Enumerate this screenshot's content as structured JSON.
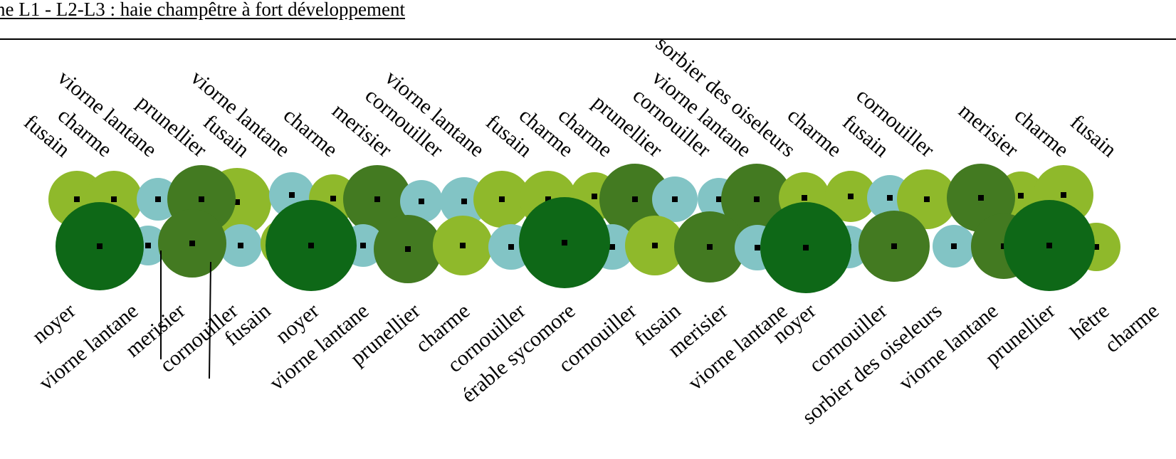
{
  "title": "ne L1 - L2-L3 : haie champêtre à fort développement",
  "colors": {
    "light_green": "#8fb92b",
    "cyan": "#82c4c5",
    "mid_green": "#437a21",
    "dark_green": "#0e6817",
    "dot": "#000000",
    "line": "#000000"
  },
  "top_labels": [
    "fusain",
    "charme",
    "viorne lantane",
    "prunellier",
    "fusain",
    "viorne lantane",
    "charme",
    "merisier",
    "cornouiller",
    "viorne lantane",
    "fusain",
    "charme",
    "charme",
    "prunellier",
    "cornouiller",
    "viorne lantane",
    "sorbier des oiseleurs",
    "charme",
    "fusain",
    "cornouiller",
    "merisier",
    "charme",
    "fusain"
  ],
  "bottom_labels": [
    "noyer",
    "viorne lantane",
    "merisier",
    "cornouiller",
    "fusain",
    "noyer",
    "viorne lantane",
    "prunellier",
    "charme",
    "cornouiller",
    "érable sycomore",
    "cornouiller",
    "fusain",
    "merisier",
    "viorne lantane",
    "noyer",
    "cornouiller",
    "sorbier des oiseleurs",
    "viorne lantane",
    "prunellier",
    "hêtre",
    "charme"
  ]
}
